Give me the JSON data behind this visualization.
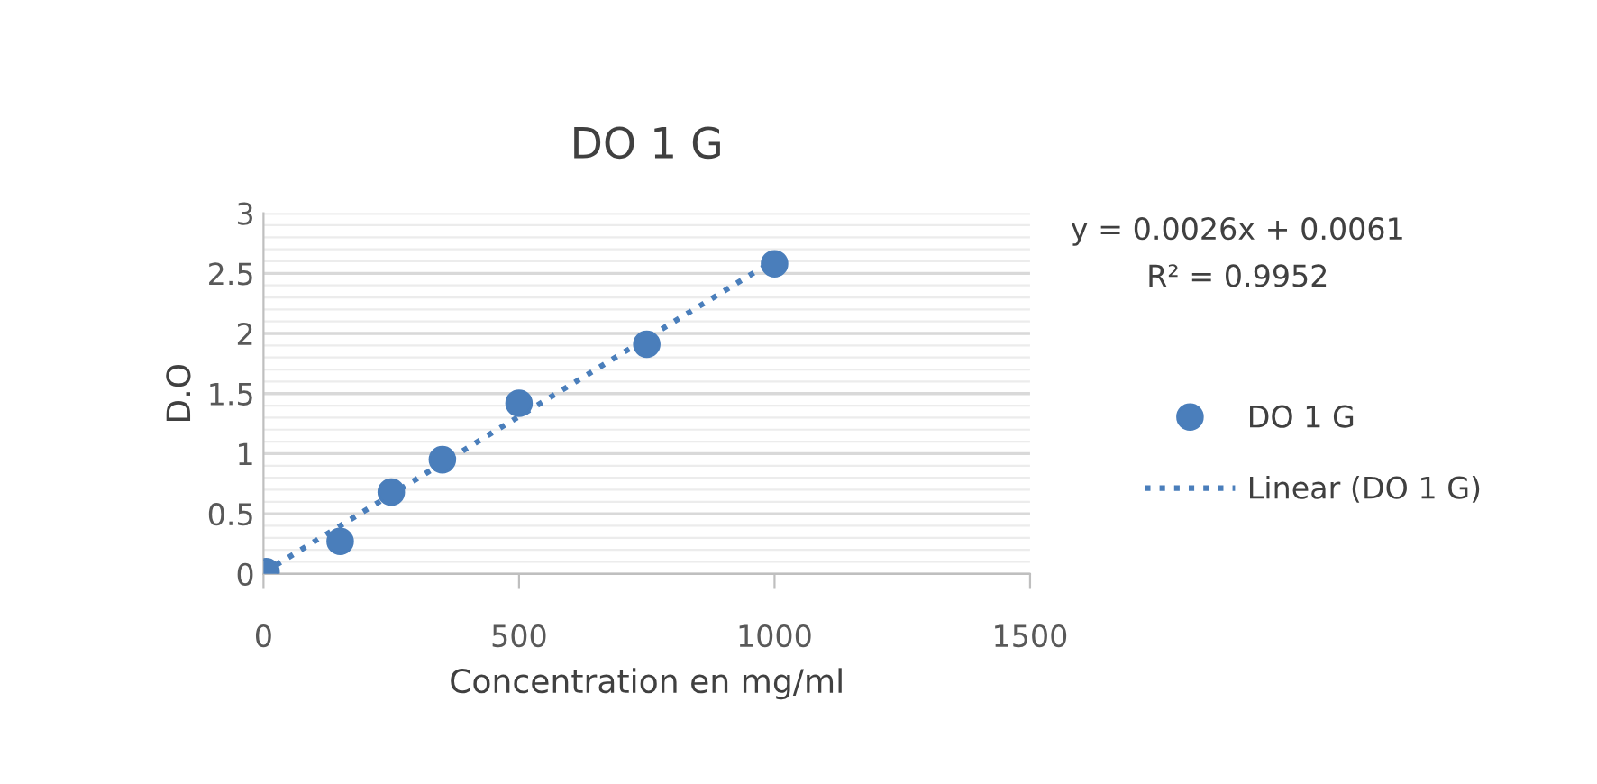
{
  "chart_data": {
    "type": "scatter",
    "title": "DO 1 G",
    "xlabel": "Concentration en mg/ml",
    "ylabel": "D.O",
    "xlim": [
      0,
      1500
    ],
    "xticks": [
      0,
      500,
      1000,
      1500
    ],
    "ylim": [
      0,
      3
    ],
    "yticks": [
      0,
      0.5,
      1,
      1.5,
      2,
      2.5,
      3
    ],
    "grid": "y",
    "legend": "right",
    "marker": "circle",
    "annotations": [
      "y = 0.0026x + 0.0061",
      "R² = 0.9952"
    ],
    "series": [
      {
        "name": "DO 1 G",
        "color": "#4a7ebb",
        "x": [
          5,
          150,
          250,
          350,
          500,
          750,
          1000
        ],
        "values": [
          0.02,
          0.27,
          0.68,
          0.95,
          1.42,
          1.91,
          2.58
        ]
      },
      {
        "name": "Linear (DO 1 G)",
        "type": "line",
        "color": "#4a7ebb",
        "line_style": "dotted",
        "marker": "none",
        "x": [
          0,
          1000
        ],
        "values": [
          0.01,
          2.61
        ]
      }
    ]
  }
}
